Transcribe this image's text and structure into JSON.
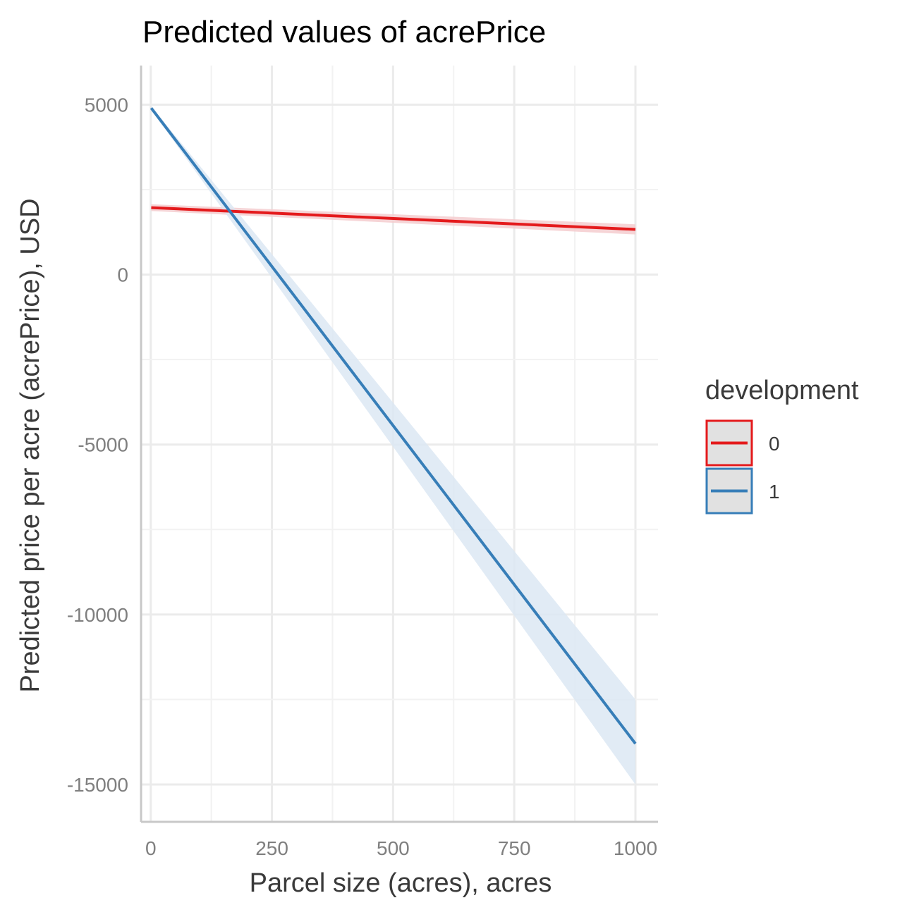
{
  "chart_data": {
    "type": "line",
    "title": "Predicted values of acrePrice",
    "xlabel": "Parcel size (acres), acres",
    "ylabel": "Predicted price per acre (acrePrice), USD",
    "xlim": [
      -20,
      1000
    ],
    "ylim": [
      -16100,
      6150
    ],
    "x_ticks": [
      0,
      250,
      500,
      750,
      1000
    ],
    "x_tick_labels": [
      "0",
      "250",
      "500",
      "750",
      "1000"
    ],
    "y_ticks": [
      5000,
      0,
      -5000,
      -10000,
      -15000
    ],
    "y_tick_labels": [
      "5000",
      "0",
      "-5000",
      "-10000",
      "-15000"
    ],
    "grid": true,
    "legend": {
      "title": "development",
      "position": "right"
    },
    "series": [
      {
        "name": "0",
        "color": "#e41a1c",
        "ribbon_color": "#f4cccf",
        "x": [
          1,
          1000
        ],
        "y": [
          1970,
          1330
        ],
        "ci_low": [
          1870,
          1180
        ],
        "ci_high": [
          2070,
          1480
        ]
      },
      {
        "name": "1",
        "color": "#377eb8",
        "ribbon_color": "#dce7f3",
        "x": [
          1,
          1000
        ],
        "y": [
          4900,
          -13800
        ],
        "ci_low": [
          4850,
          -15000
        ],
        "ci_high": [
          4950,
          -12500
        ]
      }
    ]
  }
}
